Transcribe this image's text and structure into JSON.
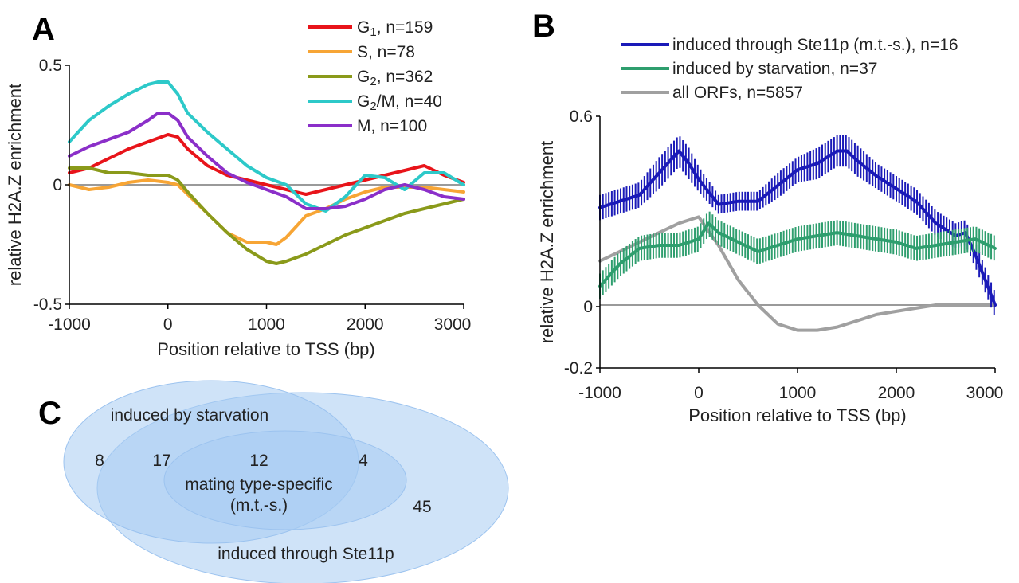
{
  "panels": {
    "a_letter": "A",
    "b_letter": "B",
    "c_letter": "C"
  },
  "chart_data": [
    {
      "panel": "A",
      "type": "line",
      "xlabel": "Position relative to TSS (bp)",
      "ylabel": "relative H2A.Z enrichment",
      "xlim": [
        -1000,
        3000
      ],
      "ylim": [
        -0.5,
        0.5
      ],
      "xticks": [
        "-1000",
        "0",
        "1000",
        "2000",
        "3000"
      ],
      "yticks": [
        "0.5",
        "0",
        "-0.5"
      ],
      "zero_line": true,
      "legend_position": "top-right",
      "series": [
        {
          "name": "G1, n=159",
          "name_main": "G",
          "name_sub": "1",
          "name_rest": ", n=159",
          "color": "#e8141a",
          "x": [
            -1000,
            -800,
            -600,
            -400,
            -200,
            0,
            100,
            200,
            400,
            600,
            800,
            1000,
            1200,
            1400,
            1600,
            1800,
            2000,
            2200,
            2400,
            2600,
            2800,
            3000
          ],
          "y": [
            0.05,
            0.07,
            0.11,
            0.15,
            0.18,
            0.21,
            0.2,
            0.15,
            0.08,
            0.04,
            0.02,
            0.0,
            -0.02,
            -0.04,
            -0.02,
            0.0,
            0.02,
            0.04,
            0.06,
            0.08,
            0.04,
            0.01
          ]
        },
        {
          "name": "S, n=78",
          "color": "#f7a535",
          "x": [
            -1000,
            -800,
            -600,
            -400,
            -200,
            0,
            100,
            200,
            400,
            600,
            800,
            1000,
            1100,
            1200,
            1400,
            1600,
            1800,
            2000,
            2200,
            2400,
            2600,
            2800,
            3000
          ],
          "y": [
            0.0,
            -0.02,
            -0.01,
            0.01,
            0.02,
            0.01,
            0.0,
            -0.04,
            -0.12,
            -0.2,
            -0.24,
            -0.24,
            -0.25,
            -0.22,
            -0.13,
            -0.1,
            -0.06,
            -0.03,
            -0.01,
            -0.01,
            -0.01,
            -0.02,
            -0.03
          ]
        },
        {
          "name": "G2, n=362",
          "name_main": "G",
          "name_sub": "2",
          "name_rest": ", n=362",
          "color": "#8a9a1a",
          "x": [
            -1000,
            -800,
            -600,
            -400,
            -200,
            0,
            100,
            200,
            400,
            600,
            800,
            1000,
            1100,
            1200,
            1400,
            1600,
            1800,
            2000,
            2200,
            2400,
            2600,
            2800,
            3000
          ],
          "y": [
            0.07,
            0.07,
            0.05,
            0.05,
            0.04,
            0.04,
            0.02,
            -0.03,
            -0.12,
            -0.2,
            -0.27,
            -0.32,
            -0.33,
            -0.32,
            -0.29,
            -0.25,
            -0.21,
            -0.18,
            -0.15,
            -0.12,
            -0.1,
            -0.08,
            -0.06
          ]
        },
        {
          "name": "G2/M, n=40",
          "name_main": "G",
          "name_sub": "2",
          "name_rest": "/M, n=40",
          "color": "#2dc9c9",
          "x": [
            -1000,
            -800,
            -600,
            -400,
            -200,
            -100,
            0,
            100,
            200,
            400,
            600,
            800,
            1000,
            1200,
            1400,
            1600,
            1800,
            2000,
            2200,
            2400,
            2600,
            2800,
            3000
          ],
          "y": [
            0.18,
            0.27,
            0.33,
            0.38,
            0.42,
            0.43,
            0.43,
            0.38,
            0.3,
            0.22,
            0.15,
            0.08,
            0.03,
            0.0,
            -0.08,
            -0.11,
            -0.05,
            0.04,
            0.03,
            -0.02,
            0.05,
            0.05,
            0.0
          ]
        },
        {
          "name": "M, n=100",
          "color": "#8b2fc9",
          "x": [
            -1000,
            -800,
            -600,
            -400,
            -200,
            -100,
            0,
            100,
            200,
            400,
            600,
            800,
            1000,
            1200,
            1400,
            1600,
            1800,
            2000,
            2200,
            2400,
            2600,
            2800,
            3000
          ],
          "y": [
            0.12,
            0.16,
            0.19,
            0.22,
            0.27,
            0.3,
            0.3,
            0.27,
            0.2,
            0.12,
            0.05,
            0.01,
            -0.02,
            -0.05,
            -0.1,
            -0.1,
            -0.09,
            -0.06,
            -0.02,
            0.0,
            -0.02,
            -0.05,
            -0.06
          ]
        }
      ]
    },
    {
      "panel": "B",
      "type": "line",
      "xlabel": "Position relative to TSS (bp)",
      "ylabel": "relative H2A.Z enrichment",
      "xlim": [
        -1000,
        3000
      ],
      "ylim": [
        -0.2,
        0.6
      ],
      "xticks": [
        "-1000",
        "0",
        "1000",
        "2000",
        "3000"
      ],
      "yticks": [
        "0.6",
        "0",
        "-0.2"
      ],
      "zero_line": true,
      "error_bars": true,
      "legend_position": "top",
      "series": [
        {
          "name": "induced through Ste11p (m.t.-s.), n=16",
          "color": "#1a1ab8",
          "x": [
            -1000,
            -800,
            -600,
            -400,
            -200,
            -100,
            0,
            200,
            400,
            600,
            800,
            1000,
            1200,
            1400,
            1500,
            1600,
            1800,
            2000,
            2200,
            2400,
            2600,
            2700,
            2800,
            2900,
            3000
          ],
          "y": [
            0.31,
            0.33,
            0.35,
            0.42,
            0.49,
            0.45,
            0.4,
            0.32,
            0.33,
            0.33,
            0.38,
            0.43,
            0.45,
            0.49,
            0.49,
            0.46,
            0.41,
            0.37,
            0.33,
            0.26,
            0.22,
            0.23,
            0.16,
            0.08,
            0.0
          ],
          "err": [
            0.04,
            0.04,
            0.04,
            0.05,
            0.05,
            0.05,
            0.04,
            0.03,
            0.03,
            0.03,
            0.04,
            0.04,
            0.05,
            0.05,
            0.05,
            0.05,
            0.04,
            0.04,
            0.04,
            0.04,
            0.04,
            0.04,
            0.04,
            0.04,
            0.04
          ]
        },
        {
          "name": "induced by starvation, n=37",
          "color": "#2e9e6e",
          "x": [
            -1000,
            -800,
            -600,
            -400,
            -200,
            0,
            100,
            200,
            400,
            600,
            800,
            1000,
            1200,
            1400,
            1600,
            1800,
            2000,
            2200,
            2400,
            2600,
            2800,
            3000
          ],
          "y": [
            0.06,
            0.13,
            0.18,
            0.19,
            0.19,
            0.21,
            0.26,
            0.23,
            0.2,
            0.17,
            0.19,
            0.21,
            0.22,
            0.23,
            0.22,
            0.21,
            0.2,
            0.18,
            0.19,
            0.2,
            0.21,
            0.18
          ],
          "err": [
            0.04,
            0.04,
            0.04,
            0.04,
            0.04,
            0.04,
            0.04,
            0.04,
            0.04,
            0.04,
            0.04,
            0.04,
            0.04,
            0.04,
            0.04,
            0.04,
            0.04,
            0.04,
            0.04,
            0.04,
            0.04,
            0.04
          ]
        },
        {
          "name": "all ORFs, n=5857",
          "color": "#a0a0a0",
          "x": [
            -1000,
            -800,
            -600,
            -400,
            -200,
            0,
            200,
            400,
            600,
            800,
            1000,
            1200,
            1400,
            1600,
            1800,
            2000,
            2200,
            2400,
            2600,
            2800,
            3000
          ],
          "y": [
            0.14,
            0.17,
            0.2,
            0.23,
            0.26,
            0.28,
            0.19,
            0.08,
            0.0,
            -0.06,
            -0.08,
            -0.08,
            -0.07,
            -0.05,
            -0.03,
            -0.02,
            -0.01,
            0.0,
            0.0,
            0.0,
            0.0
          ]
        }
      ]
    }
  ],
  "venn": {
    "labels": {
      "starvation": "induced by starvation",
      "mts_line1": "mating type-specific",
      "mts_line2": "(m.t.-s.)",
      "ste11": "induced through Ste11p"
    },
    "counts": {
      "starvation_only": "8",
      "starvation_ste11": "17",
      "all_three": "12",
      "ste11_mts": "4",
      "ste11_only": "45"
    },
    "colors": {
      "fill": "#a8ccf2",
      "stroke": "#9cc3ef"
    }
  }
}
